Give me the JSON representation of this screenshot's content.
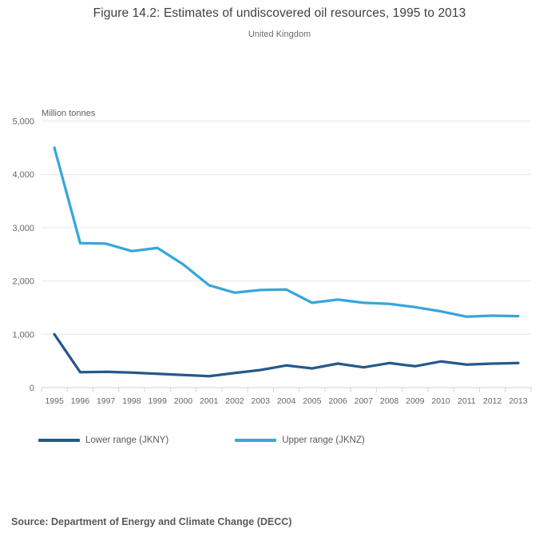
{
  "chart_data": {
    "type": "line",
    "title": "Figure 14.2: Estimates of undiscovered oil resources, 1995 to 2013",
    "subtitle": "United Kingdom",
    "xlabel": "",
    "ylabel": "Million tonnes",
    "source": "Source: Department of Energy and Climate Change (DECC)",
    "x": [
      1995,
      1996,
      1997,
      1998,
      1999,
      2000,
      2001,
      2002,
      2003,
      2004,
      2005,
      2006,
      2007,
      2008,
      2009,
      2010,
      2011,
      2012,
      2013
    ],
    "series": [
      {
        "name": "Lower range (JKNY)",
        "color": "#25598c",
        "values": [
          1000,
          290,
          295,
          280,
          260,
          235,
          215,
          275,
          330,
          415,
          360,
          450,
          380,
          460,
          400,
          490,
          430,
          450,
          460
        ]
      },
      {
        "name": "Upper range (JKNZ)",
        "color": "#38a6d8",
        "values": [
          4500,
          2710,
          2700,
          2560,
          2620,
          2310,
          1920,
          1780,
          1830,
          1840,
          1590,
          1650,
          1590,
          1570,
          1510,
          1430,
          1330,
          1350,
          1340
        ]
      }
    ],
    "ylim": [
      0,
      5000
    ],
    "y_ticks": [
      0,
      1000,
      2000,
      3000,
      4000,
      5000
    ],
    "grid": true,
    "legend_position": "bottom-left",
    "colors": {
      "gridline": "#e6e6e6",
      "axis_line": "#c9d6e2",
      "tick_label": "#666666",
      "title_text": "#3f3f3f",
      "subtitle_text": "#6b6b6b"
    }
  }
}
